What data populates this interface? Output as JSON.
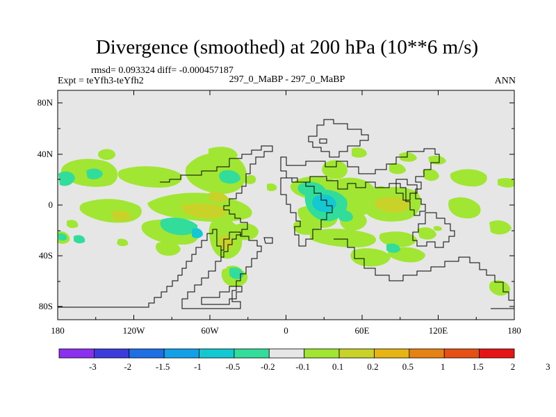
{
  "title": "Divergence (smoothed) at 200 hPa (10**6 m/s)",
  "stats": "rmsd= 0.093324 diff= -0.000457187",
  "experiment": "Expt = teYfh3-teYfh2",
  "subtitle": "297_0_MaBP - 297_0_MaBP",
  "season": "ANN",
  "map": {
    "lat_labels": [
      "80N",
      "40N",
      "0",
      "40S",
      "80S"
    ],
    "lon_labels": [
      "180",
      "120W",
      "60W",
      "0",
      "60E",
      "120E",
      "180"
    ],
    "colors": {
      "background": "#e6e6e6",
      "green": "#a0e632",
      "yellow": "#c8d228",
      "teal": "#32dc9a",
      "cyan": "#14c8d2"
    }
  },
  "colorbar": {
    "colors": [
      "#8c30f0",
      "#3c3cdc",
      "#1e6ee6",
      "#14a0e6",
      "#14c8d2",
      "#32dc9a",
      "#e6e6e6",
      "#a0e632",
      "#c8d228",
      "#e6b414",
      "#e68214",
      "#e65014",
      "#e61414"
    ],
    "labels": [
      "-3",
      "-2",
      "-1.5",
      "-1",
      "-0.5",
      "-0.2",
      "-0.1",
      "0.1",
      "0.2",
      "0.5",
      "1",
      "1.5",
      "2",
      "3"
    ]
  }
}
